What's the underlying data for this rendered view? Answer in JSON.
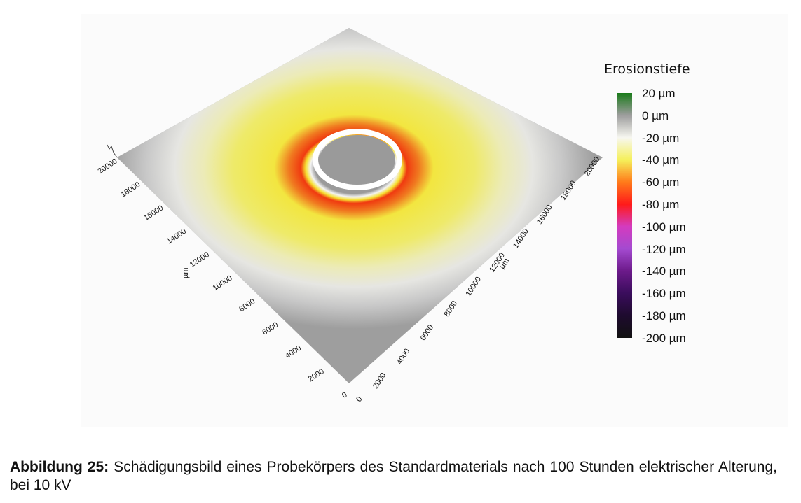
{
  "figure": {
    "colorbar": {
      "title": "Erosionstiefe",
      "labels": [
        "20 µm",
        "0 µm",
        "-20 µm",
        "-40 µm",
        "-60 µm",
        "-80 µm",
        "-100 µm",
        "-120 µm",
        "-140 µm",
        "-160 µm",
        "-180 µm",
        "-200 µm"
      ],
      "colors": [
        "#1a7a1a",
        "#9d9d9d",
        "#f7f7f0",
        "#f5f05a",
        "#ff7a1a",
        "#ff1a1a",
        "#d43bbf",
        "#a44ad0",
        "#6c1a8a",
        "#3a0d5c",
        "#1e0b2e",
        "#111111"
      ]
    },
    "left_axis": {
      "ticks": [
        "0",
        "2000",
        "4000",
        "6000",
        "8000",
        "10000",
        "12000",
        "14000",
        "16000",
        "18000",
        "20000"
      ],
      "unit": "µm"
    },
    "right_axis": {
      "ticks": [
        "0",
        "2000",
        "4000",
        "6000",
        "8000",
        "10000",
        "12000",
        "14000",
        "16000",
        "18000",
        "20000"
      ],
      "unit": "µm"
    }
  },
  "caption": {
    "label": "Abbildung 25:",
    "text": " Schädigungsbild eines Probekörpers des Standardmaterials nach 100 Stunden elektrischer Alterung, bei 10 kV"
  }
}
